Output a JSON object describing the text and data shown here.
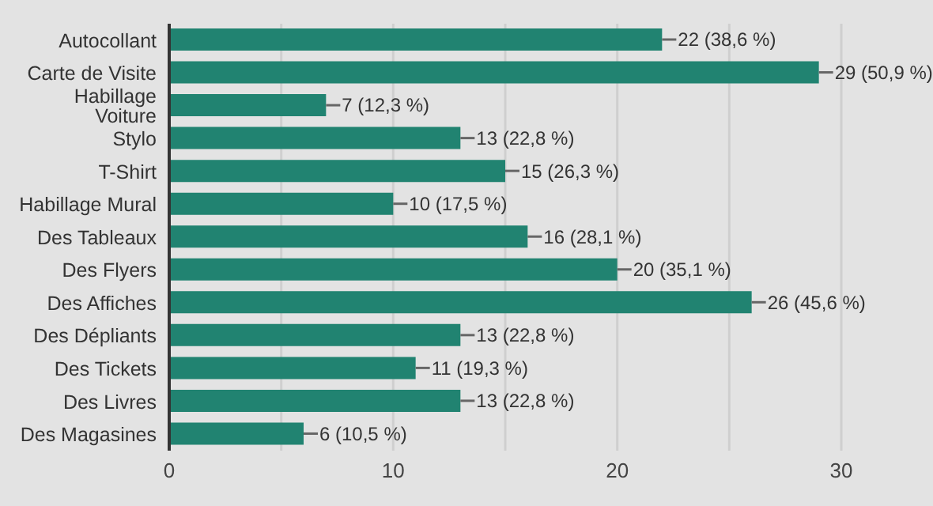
{
  "chart_data": {
    "type": "bar",
    "orientation": "horizontal",
    "categories": [
      "Autocollant",
      "Carte de Visite",
      "Habillage Voiture",
      "Stylo",
      "T-Shirt",
      "Habillage Mural",
      "Des Tableaux",
      "Des Flyers",
      "Des Affiches",
      "Des Dépliants",
      "Des Tickets",
      "Des Livres",
      "Des Magasines"
    ],
    "values": [
      22,
      29,
      7,
      13,
      15,
      10,
      16,
      20,
      26,
      13,
      11,
      13,
      6
    ],
    "value_labels": [
      "22 (38,6 %)",
      "29 (50,9 %)",
      "7 (12,3 %)",
      "13 (22,8 %)",
      "15 (26,3 %)",
      "10 (17,5 %)",
      "16 (28,1 %)",
      "20 (35,1 %)",
      "26 (45,6 %)",
      "13 (22,8 %)",
      "11 (19,3 %)",
      "13 (22,8 %)",
      "6 (10,5 %)"
    ],
    "color": "#218371",
    "xlim": [
      0,
      30
    ],
    "xticks": [
      0,
      {
        "value": 5,
        "label": null
      },
      10,
      {
        "value": 15,
        "label": null
      },
      20,
      {
        "value": 25,
        "label": null
      },
      30
    ],
    "grid": "x",
    "legend": false
  }
}
